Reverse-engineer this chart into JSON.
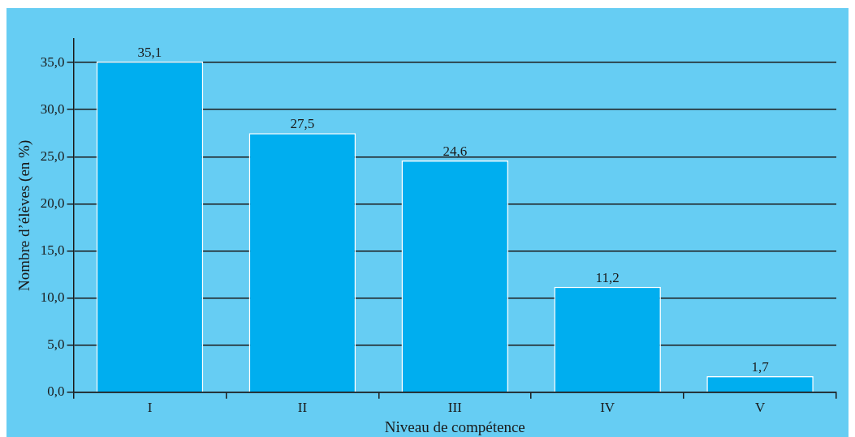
{
  "chart_data": {
    "type": "bar",
    "xlabel": "Niveau de compétence",
    "ylabel": "Nombre d’élèves (en %)",
    "categories": [
      "I",
      "II",
      "III",
      "IV",
      "V"
    ],
    "values": [
      35.1,
      27.5,
      24.6,
      11.2,
      1.7
    ],
    "value_labels": [
      "35,1",
      "27,5",
      "24,6",
      "11,2",
      "1,7"
    ],
    "color": "#00aeef",
    "ylim": [
      0,
      37.5
    ],
    "yticks": [
      {
        "value": 0,
        "label": "0,0"
      },
      {
        "value": 5,
        "label": "5,0"
      },
      {
        "value": 10,
        "label": "10,0"
      },
      {
        "value": 15,
        "label": "15,0"
      },
      {
        "value": 20,
        "label": "20,0"
      },
      {
        "value": 25,
        "label": "25,0"
      },
      {
        "value": 30,
        "label": "30,0"
      },
      {
        "value": 35,
        "label": "35,0"
      }
    ],
    "grid": "y",
    "legend": false
  }
}
